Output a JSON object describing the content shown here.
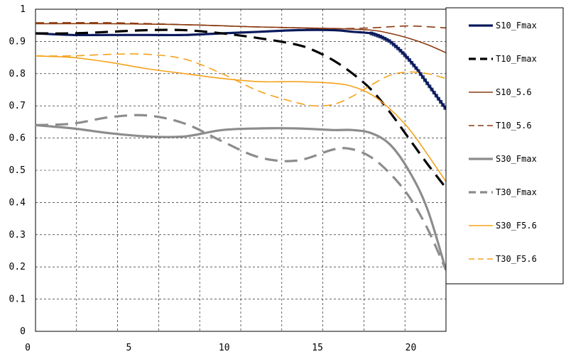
{
  "chart_data": {
    "type": "line",
    "title": "",
    "xlabel": "",
    "ylabel": "",
    "xlim": [
      0,
      22
    ],
    "ylim": [
      0,
      1
    ],
    "x_ticks": [
      0,
      5,
      10,
      15,
      20
    ],
    "x_tick_labels": [
      "0",
      "5",
      "10",
      "15",
      "20"
    ],
    "y_ticks": [
      0,
      0.1,
      0.2,
      0.3,
      0.4,
      0.5,
      0.6,
      0.7,
      0.8,
      0.9,
      1
    ],
    "y_tick_labels": [
      "0",
      "0.1",
      "0.2",
      "0.3",
      "0.4",
      "0.5",
      "0.6",
      "0.7",
      "0.8",
      "0.9",
      "1"
    ],
    "grid": true,
    "legend_position": "right",
    "series": [
      {
        "name": "S10_Fmax",
        "color": "#0a1a5c",
        "dash": "solid",
        "marker": "square",
        "x": [
          0,
          2,
          4,
          6,
          8,
          10,
          12,
          14,
          16,
          17,
          18,
          18.5,
          19,
          19.5,
          20,
          20.5,
          21,
          21.5,
          22
        ],
        "y": [
          0.925,
          0.92,
          0.92,
          0.92,
          0.92,
          0.925,
          0.93,
          0.935,
          0.935,
          0.93,
          0.925,
          0.915,
          0.9,
          0.875,
          0.845,
          0.81,
          0.77,
          0.73,
          0.69
        ]
      },
      {
        "name": "T10_Fmax",
        "color": "#000000",
        "dash": "dashed",
        "marker": "none",
        "x": [
          0,
          2,
          4,
          6,
          8,
          10,
          12,
          14,
          15,
          16,
          17,
          18,
          19,
          20,
          21,
          22
        ],
        "y": [
          0.925,
          0.925,
          0.93,
          0.935,
          0.935,
          0.925,
          0.91,
          0.89,
          0.87,
          0.84,
          0.8,
          0.75,
          0.68,
          0.6,
          0.52,
          0.445
        ]
      },
      {
        "name": "S10_5.6",
        "color": "#8b3a0f",
        "dash": "solid",
        "marker": "none",
        "x": [
          0,
          4,
          8,
          12,
          16,
          18,
          19,
          20,
          21,
          22
        ],
        "y": [
          0.955,
          0.955,
          0.952,
          0.945,
          0.94,
          0.935,
          0.925,
          0.91,
          0.89,
          0.865
        ]
      },
      {
        "name": "T10_5.6",
        "color": "#8b3a0f",
        "dash": "dashed",
        "marker": "none",
        "x": [
          0,
          4,
          8,
          12,
          16,
          18,
          20,
          22
        ],
        "y": [
          0.958,
          0.958,
          0.952,
          0.945,
          0.94,
          0.942,
          0.948,
          0.942
        ]
      },
      {
        "name": "S30_Fmax",
        "color": "#8c8c8c",
        "dash": "solid",
        "marker": "none",
        "x": [
          0,
          2,
          4,
          6,
          8,
          10,
          12,
          14,
          16,
          17,
          18,
          19,
          20,
          21,
          22
        ],
        "y": [
          0.64,
          0.63,
          0.615,
          0.605,
          0.605,
          0.625,
          0.63,
          0.63,
          0.625,
          0.625,
          0.615,
          0.58,
          0.5,
          0.38,
          0.19
        ]
      },
      {
        "name": "T30_Fmax",
        "color": "#8c8c8c",
        "dash": "dashed",
        "marker": "none",
        "x": [
          0,
          2,
          4,
          6,
          8,
          10,
          12,
          14,
          16,
          17,
          18,
          19,
          20,
          21,
          22
        ],
        "y": [
          0.64,
          0.645,
          0.665,
          0.67,
          0.645,
          0.59,
          0.54,
          0.53,
          0.565,
          0.565,
          0.54,
          0.49,
          0.42,
          0.32,
          0.19
        ]
      },
      {
        "name": "S30_F5.6",
        "color": "#f5a21b",
        "dash": "solid",
        "marker": "none",
        "x": [
          0,
          2,
          4,
          6,
          8,
          10,
          12,
          14,
          16,
          17,
          18,
          19,
          20,
          21,
          22
        ],
        "y": [
          0.855,
          0.85,
          0.835,
          0.815,
          0.8,
          0.785,
          0.775,
          0.775,
          0.77,
          0.76,
          0.735,
          0.69,
          0.63,
          0.55,
          0.465
        ]
      },
      {
        "name": "T30_F5.6",
        "color": "#f5a21b",
        "dash": "dashed",
        "marker": "none",
        "x": [
          0,
          2,
          4,
          6,
          8,
          10,
          12,
          14,
          15,
          16,
          17,
          18,
          19,
          20,
          21,
          22
        ],
        "y": [
          0.855,
          0.855,
          0.86,
          0.86,
          0.845,
          0.8,
          0.745,
          0.71,
          0.7,
          0.705,
          0.73,
          0.765,
          0.795,
          0.805,
          0.8,
          0.785
        ]
      }
    ]
  }
}
